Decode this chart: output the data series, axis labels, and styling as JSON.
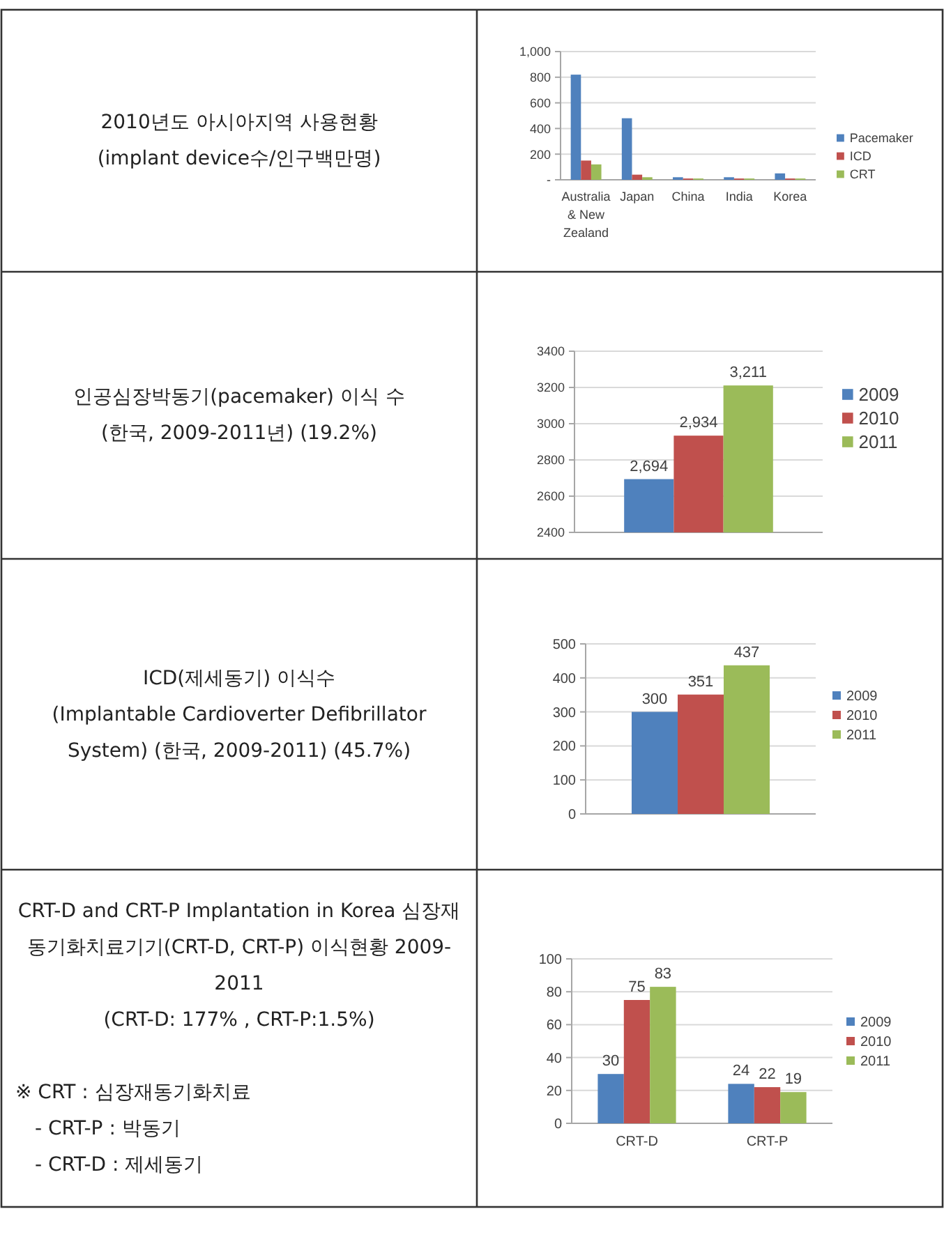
{
  "chart_data": [
    {
      "type": "other",
      "title": "2010년도 아시아지역 사용현황",
      "subtitle": "(implant device수/인구백만명)"
    },
    {
      "type": "bar",
      "categories": [
        "Australia & New Zealand",
        "Japan",
        "China",
        "India",
        "Korea"
      ],
      "series": [
        {
          "name": "Pacemaker",
          "color": "#4f81bd",
          "values": [
            820,
            480,
            20,
            20,
            50
          ]
        },
        {
          "name": "ICD",
          "color": "#c0504d",
          "values": [
            150,
            40,
            10,
            10,
            10
          ]
        },
        {
          "name": "CRT",
          "color": "#9bbb59",
          "values": [
            120,
            20,
            10,
            10,
            10
          ]
        }
      ],
      "ylim": [
        0,
        1000
      ],
      "yticks": [
        {
          "value": 0,
          "label": "-"
        },
        200,
        400,
        600,
        800,
        {
          "value": 1000,
          "label": "1,000"
        }
      ],
      "grid": "y",
      "legend": "right"
    },
    {
      "type": "other",
      "title": "인공심장박동기(pacemaker) 이식 수",
      "subtitle": "(한국, 2009-2011년) (19.2%)"
    },
    {
      "type": "bar",
      "categories": [
        null
      ],
      "series": [
        {
          "name": "2009",
          "color": "#4f81bd",
          "values": [
            2694
          ],
          "value_labels": [
            "2,694"
          ]
        },
        {
          "name": "2010",
          "color": "#c0504d",
          "values": [
            2934
          ],
          "value_labels": [
            "2,934"
          ]
        },
        {
          "name": "2011",
          "color": "#9bbb59",
          "values": [
            3211
          ],
          "value_labels": [
            "3,211"
          ]
        }
      ],
      "ylim": [
        2400,
        3400
      ],
      "yticks": [
        2400,
        2600,
        2800,
        3000,
        3200,
        3400
      ],
      "grid": "y",
      "legend": "right"
    },
    {
      "type": "other",
      "title": "ICD(제세동기) 이식수",
      "subtitle": "(Implantable Cardioverter Defibrillator System) (한국, 2009-2011) (45.7%)"
    },
    {
      "type": "bar",
      "categories": [
        null
      ],
      "series": [
        {
          "name": "2009",
          "color": "#4f81bd",
          "values": [
            300
          ]
        },
        {
          "name": "2010",
          "color": "#c0504d",
          "values": [
            351
          ]
        },
        {
          "name": "2011",
          "color": "#9bbb59",
          "values": [
            437
          ]
        }
      ],
      "ylim": [
        0,
        500
      ],
      "yticks": [
        0,
        100,
        200,
        300,
        400,
        500
      ],
      "grid": "y",
      "legend": "right",
      "data_labels": true
    },
    {
      "type": "other",
      "title": "CRT-D and CRT-P Implantation in Korea 심장재동기화치료기기(CRT-D, CRT-P) 이식현황 2009-2011",
      "subtitle": "(CRT-D: 177% , CRT-P:1.5%)",
      "annotations": [
        "※ CRT : 심장재동기화치료",
        "- CRT-P : 박동기",
        "- CRT-D : 제세동기"
      ]
    },
    {
      "type": "bar",
      "categories": [
        "CRT-D",
        "CRT-P"
      ],
      "series": [
        {
          "name": "2009",
          "color": "#4f81bd",
          "values": [
            30,
            24
          ]
        },
        {
          "name": "2010",
          "color": "#c0504d",
          "values": [
            75,
            22
          ]
        },
        {
          "name": "2011",
          "color": "#9bbb59",
          "values": [
            83,
            19
          ]
        }
      ],
      "ylim": [
        0,
        100
      ],
      "yticks": [
        0,
        20,
        40,
        60,
        80,
        100
      ],
      "grid": "y",
      "legend": "right",
      "data_labels": true
    }
  ]
}
